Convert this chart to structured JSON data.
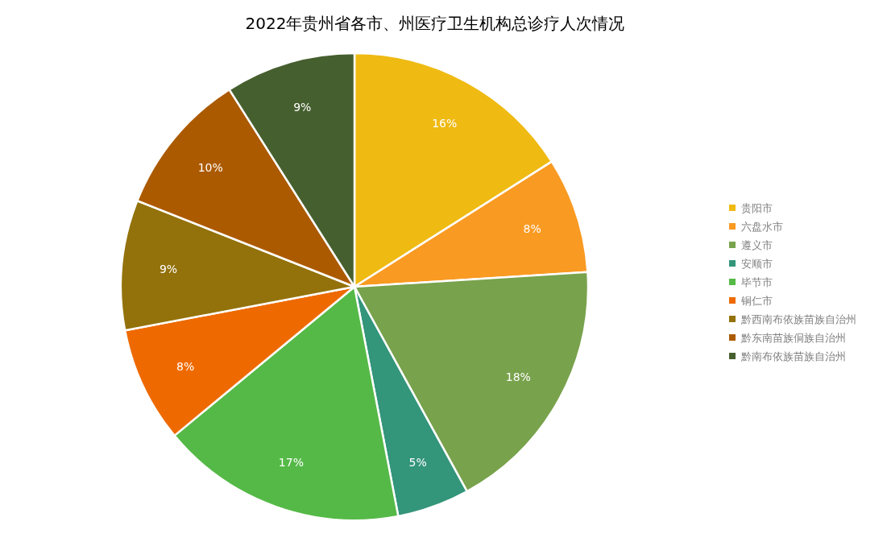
{
  "chart_data": {
    "type": "pie",
    "title": "2022年贵州省各市、州医疗卫生机构总诊疗人次情况",
    "categories": [
      "贵阳市",
      "六盘水市",
      "遵义市",
      "安顺市",
      "毕节市",
      "铜仁市",
      "黔西南布依族苗族自治州",
      "黔东南苗族侗族自治州",
      "黔南布依族苗族自治州"
    ],
    "values": [
      16,
      8,
      18,
      5,
      17,
      8,
      9,
      10,
      9
    ],
    "colors": [
      "#efba12",
      "#f99a22",
      "#78a24c",
      "#33957a",
      "#55b947",
      "#ee6a00",
      "#93720b",
      "#ac5a00",
      "#465f2f"
    ],
    "value_labels": [
      "16%",
      "8%",
      "18%",
      "5%",
      "17%",
      "8%",
      "9%",
      "10%",
      "9%"
    ],
    "legend": "right"
  }
}
